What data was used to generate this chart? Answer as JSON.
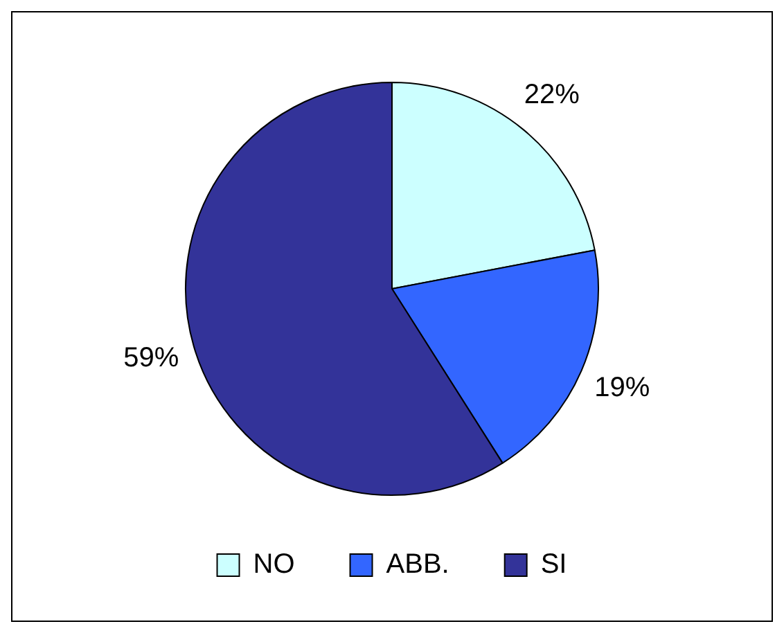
{
  "chart_data": {
    "type": "pie",
    "categories": [
      "NO",
      "ABB.",
      "SI"
    ],
    "values": [
      22,
      19,
      59
    ],
    "colors": [
      "#ccffff",
      "#3366ff",
      "#333399"
    ],
    "value_labels": [
      "22%",
      "19%",
      "59%"
    ],
    "legend": "bottom"
  }
}
